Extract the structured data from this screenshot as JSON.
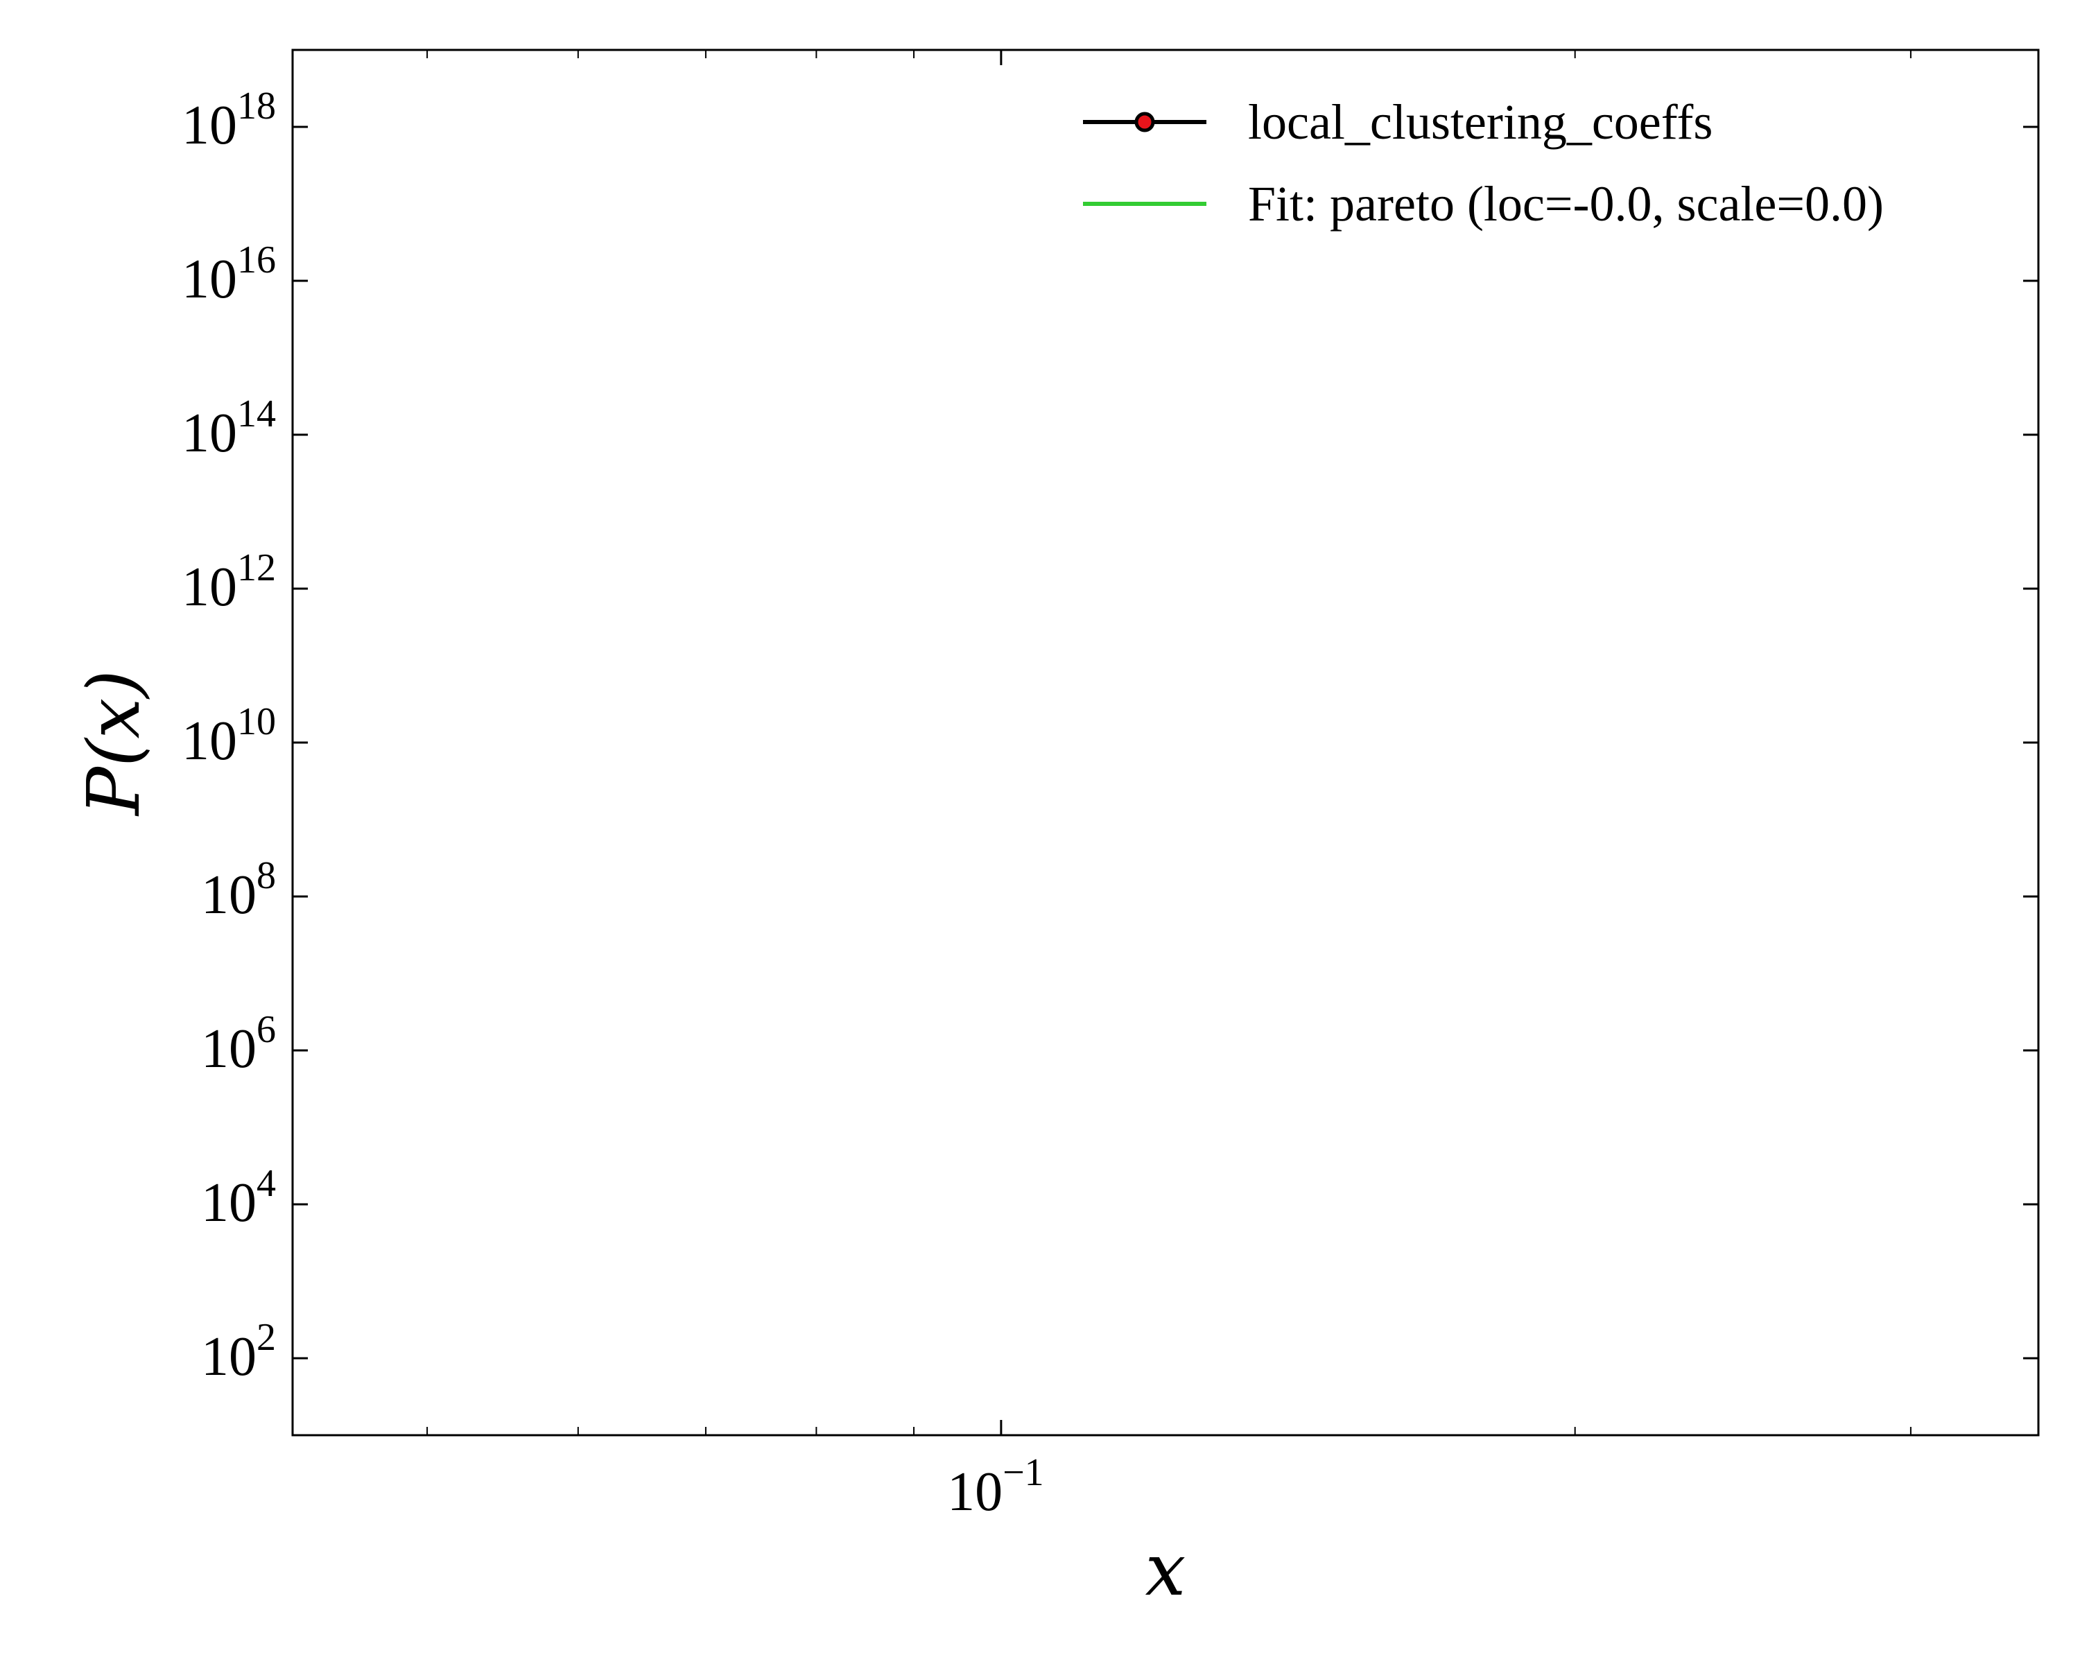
{
  "chart_data": {
    "type": "line",
    "xlabel": "x",
    "ylabel": "P(x)",
    "xscale": "log",
    "yscale": "log",
    "xlim": [
      0.0425,
      0.35
    ],
    "ylim": [
      10,
      1e+19
    ],
    "x_ticks": [
      {
        "base": "10",
        "exp": "−1",
        "value": 0.1
      }
    ],
    "x_minor_ticks": [
      0.05,
      0.06,
      0.07,
      0.08,
      0.09,
      0.2,
      0.3
    ],
    "y_ticks": [
      {
        "base": "10",
        "exp": "2",
        "value": 100.0
      },
      {
        "base": "10",
        "exp": "4",
        "value": 10000.0
      },
      {
        "base": "10",
        "exp": "6",
        "value": 1000000.0
      },
      {
        "base": "10",
        "exp": "8",
        "value": 100000000.0
      },
      {
        "base": "10",
        "exp": "10",
        "value": 10000000000.0
      },
      {
        "base": "10",
        "exp": "12",
        "value": 1000000000000.0
      },
      {
        "base": "10",
        "exp": "14",
        "value": 100000000000000.0
      },
      {
        "base": "10",
        "exp": "16",
        "value": 1e+16
      },
      {
        "base": "10",
        "exp": "18",
        "value": 1e+18
      }
    ],
    "grid": false,
    "legend_position": "top-right",
    "series": [
      {
        "name": "local_clustering_coeffs",
        "color": "#000000",
        "marker_color": "#e8141b",
        "x": [],
        "y": []
      },
      {
        "name": "Fit: pareto (loc=-0.0, scale=0.0)",
        "color": "#33cc33",
        "x": [],
        "y": []
      }
    ]
  }
}
